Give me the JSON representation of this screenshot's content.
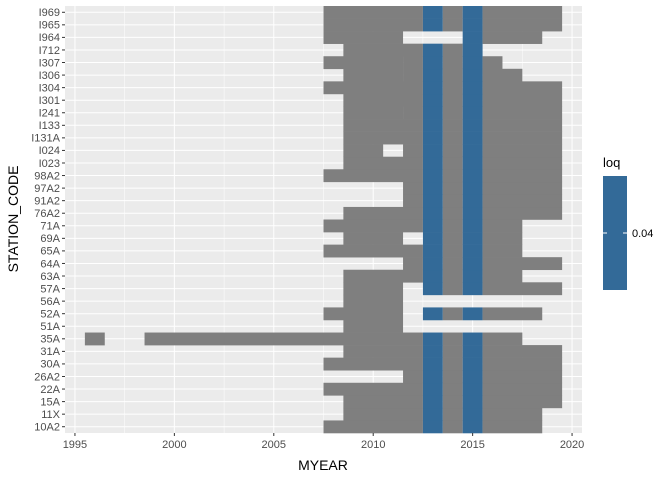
{
  "chart_data": {
    "type": "heatmap",
    "xlabel": "MYEAR",
    "ylabel": "STATION_CODE",
    "xlim": [
      1994.5,
      2020.5
    ],
    "x_ticks": [
      1995,
      2000,
      2005,
      2010,
      2015,
      2020
    ],
    "stations": [
      "10A2",
      "11X",
      "15A",
      "22A",
      "26A2",
      "30A",
      "31A",
      "35A",
      "51A",
      "52A",
      "56A",
      "57A",
      "63A",
      "64A",
      "65A",
      "69A",
      "71A",
      "76A2",
      "91A2",
      "97A2",
      "98A2",
      "I023",
      "I024",
      "I131A",
      "I133",
      "I241",
      "I301",
      "I304",
      "I306",
      "I307",
      "I712",
      "I964",
      "I965",
      "I969"
    ],
    "colors": {
      "has_data": "#7f7f7f",
      "loq": "#336a98",
      "panel": "#ebebeb",
      "grid": "#ffffff"
    },
    "legend": {
      "title": "loq",
      "labels": [
        "0.04"
      ],
      "position": "right"
    },
    "loq_years": [
      2013,
      2015
    ],
    "cells": {
      "I969": [
        [
          2008,
          2012
        ],
        [
          2013,
          2013
        ],
        [
          2014,
          2014
        ],
        [
          2015,
          2015
        ],
        [
          2016,
          2019
        ]
      ],
      "I965": [
        [
          2008,
          2012
        ],
        [
          2013,
          2013
        ],
        [
          2014,
          2014
        ],
        [
          2015,
          2015
        ],
        [
          2016,
          2019
        ]
      ],
      "I964": [
        [
          2008,
          2011
        ],
        [
          2015,
          2015
        ],
        [
          2016,
          2018
        ]
      ],
      "I712": [
        [
          2009,
          2012
        ],
        [
          2013,
          2013
        ],
        [
          2014,
          2014
        ],
        [
          2015,
          2015
        ]
      ],
      "I307": [
        [
          2008,
          2011
        ],
        [
          2012,
          2012
        ],
        [
          2013,
          2013
        ],
        [
          2014,
          2014
        ],
        [
          2015,
          2015
        ],
        [
          2016,
          2016
        ]
      ],
      "I306": [
        [
          2009,
          2011
        ],
        [
          2012,
          2012
        ],
        [
          2013,
          2013
        ],
        [
          2014,
          2014
        ],
        [
          2015,
          2015
        ],
        [
          2016,
          2017
        ]
      ],
      "I304": [
        [
          2008,
          2012
        ],
        [
          2013,
          2013
        ],
        [
          2014,
          2014
        ],
        [
          2015,
          2015
        ],
        [
          2016,
          2019
        ]
      ],
      "I301": [
        [
          2009,
          2012
        ],
        [
          2013,
          2013
        ],
        [
          2014,
          2014
        ],
        [
          2015,
          2015
        ],
        [
          2016,
          2019
        ]
      ],
      "I241": [
        [
          2009,
          2011
        ],
        [
          2012,
          2012
        ],
        [
          2013,
          2013
        ],
        [
          2014,
          2014
        ],
        [
          2015,
          2015
        ],
        [
          2016,
          2019
        ]
      ],
      "I133": [
        [
          2009,
          2012
        ],
        [
          2013,
          2013
        ],
        [
          2014,
          2014
        ],
        [
          2015,
          2015
        ],
        [
          2016,
          2019
        ]
      ],
      "I131A": [
        [
          2009,
          2012
        ],
        [
          2013,
          2013
        ],
        [
          2014,
          2014
        ],
        [
          2015,
          2015
        ],
        [
          2016,
          2019
        ]
      ],
      "I024": [
        [
          2009,
          2010
        ],
        [
          2012,
          2012
        ],
        [
          2013,
          2013
        ],
        [
          2014,
          2014
        ],
        [
          2015,
          2015
        ],
        [
          2016,
          2019
        ]
      ],
      "I023": [
        [
          2009,
          2012
        ],
        [
          2013,
          2013
        ],
        [
          2014,
          2014
        ],
        [
          2015,
          2015
        ],
        [
          2016,
          2019
        ]
      ],
      "98A2": [
        [
          2008,
          2012
        ],
        [
          2013,
          2013
        ],
        [
          2014,
          2014
        ],
        [
          2015,
          2015
        ],
        [
          2016,
          2019
        ]
      ],
      "97A2": [
        [
          2012,
          2012
        ],
        [
          2013,
          2013
        ],
        [
          2014,
          2014
        ],
        [
          2015,
          2015
        ],
        [
          2016,
          2019
        ]
      ],
      "91A2": [
        [
          2012,
          2012
        ],
        [
          2013,
          2013
        ],
        [
          2014,
          2014
        ],
        [
          2015,
          2015
        ],
        [
          2016,
          2019
        ]
      ],
      "76A2": [
        [
          2009,
          2012
        ],
        [
          2013,
          2013
        ],
        [
          2014,
          2014
        ],
        [
          2015,
          2015
        ],
        [
          2016,
          2019
        ]
      ],
      "71A": [
        [
          2008,
          2012
        ],
        [
          2013,
          2013
        ],
        [
          2014,
          2014
        ],
        [
          2015,
          2015
        ],
        [
          2016,
          2017
        ]
      ],
      "69A": [
        [
          2009,
          2011
        ],
        [
          2013,
          2013
        ],
        [
          2014,
          2014
        ],
        [
          2015,
          2015
        ],
        [
          2016,
          2017
        ]
      ],
      "65A": [
        [
          2008,
          2012
        ],
        [
          2013,
          2013
        ],
        [
          2014,
          2014
        ],
        [
          2015,
          2015
        ],
        [
          2016,
          2017
        ]
      ],
      "64A": [
        [
          2012,
          2012
        ],
        [
          2013,
          2013
        ],
        [
          2014,
          2014
        ],
        [
          2015,
          2015
        ],
        [
          2016,
          2019
        ]
      ],
      "63A": [
        [
          2009,
          2012
        ],
        [
          2013,
          2013
        ],
        [
          2014,
          2014
        ],
        [
          2015,
          2015
        ],
        [
          2016,
          2017
        ]
      ],
      "57A": [
        [
          2009,
          2011
        ],
        [
          2013,
          2013
        ],
        [
          2014,
          2014
        ],
        [
          2015,
          2015
        ],
        [
          2016,
          2019
        ]
      ],
      "56A": [
        [
          2009,
          2011
        ]
      ],
      "52A": [
        [
          2008,
          2011
        ],
        [
          2013,
          2013
        ],
        [
          2014,
          2014
        ],
        [
          2015,
          2015
        ],
        [
          2016,
          2018
        ]
      ],
      "51A": [
        [
          2009,
          2011
        ]
      ],
      "35A": [
        [
          1996,
          1996
        ],
        [
          1999,
          2012
        ],
        [
          2013,
          2013
        ],
        [
          2014,
          2014
        ],
        [
          2015,
          2015
        ],
        [
          2016,
          2017
        ]
      ],
      "31A": [
        [
          2009,
          2012
        ],
        [
          2013,
          2013
        ],
        [
          2014,
          2014
        ],
        [
          2015,
          2015
        ],
        [
          2016,
          2019
        ]
      ],
      "30A": [
        [
          2008,
          2012
        ],
        [
          2013,
          2013
        ],
        [
          2014,
          2014
        ],
        [
          2015,
          2015
        ],
        [
          2016,
          2019
        ]
      ],
      "26A2": [
        [
          2012,
          2012
        ],
        [
          2013,
          2013
        ],
        [
          2014,
          2014
        ],
        [
          2015,
          2015
        ],
        [
          2016,
          2019
        ]
      ],
      "22A": [
        [
          2008,
          2012
        ],
        [
          2013,
          2013
        ],
        [
          2014,
          2014
        ],
        [
          2015,
          2015
        ],
        [
          2016,
          2019
        ]
      ],
      "15A": [
        [
          2009,
          2012
        ],
        [
          2013,
          2013
        ],
        [
          2014,
          2014
        ],
        [
          2015,
          2015
        ],
        [
          2016,
          2019
        ]
      ],
      "11X": [
        [
          2009,
          2012
        ],
        [
          2013,
          2013
        ],
        [
          2014,
          2014
        ],
        [
          2015,
          2015
        ],
        [
          2016,
          2018
        ]
      ],
      "10A2": [
        [
          2008,
          2012
        ],
        [
          2013,
          2013
        ],
        [
          2014,
          2014
        ],
        [
          2015,
          2015
        ],
        [
          2016,
          2018
        ]
      ]
    }
  }
}
